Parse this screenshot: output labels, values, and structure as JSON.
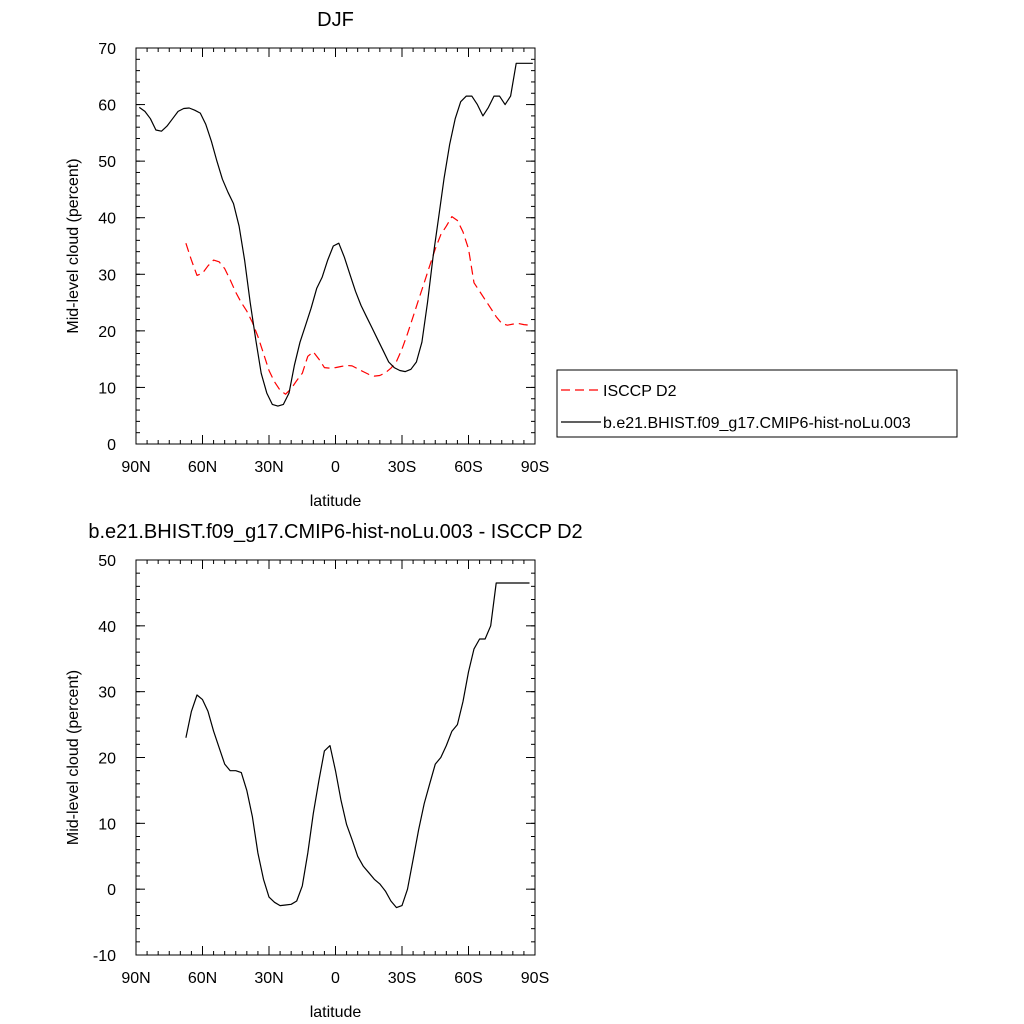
{
  "chart_data": [
    {
      "type": "line",
      "title": "DJF",
      "xlabel": "latitude",
      "ylabel": "Mid-level cloud (percent)",
      "xlim": [
        90,
        -90
      ],
      "ylim": [
        0,
        70
      ],
      "xticks": [
        90,
        60,
        30,
        0,
        -30,
        -60,
        -90
      ],
      "xtick_labels": [
        "90N",
        "60N",
        "30N",
        "0",
        "30S",
        "60S",
        "90S"
      ],
      "yticks": [
        0,
        10,
        20,
        30,
        40,
        50,
        60,
        70
      ],
      "ytick_labels": [
        "0",
        "10",
        "20",
        "30",
        "40",
        "50",
        "60",
        "70"
      ],
      "legend": {
        "placement": "right",
        "entries": [
          "ISCCP D2",
          "b.e21.BHIST.f09_g17.CMIP6-hist-noLu.003"
        ]
      },
      "series": [
        {
          "name": "ISCCP D2",
          "color": "#ff0000",
          "dashed": true,
          "x": [
            67.5,
            65,
            62.5,
            60,
            57.5,
            55,
            52.5,
            50,
            47.5,
            45,
            42.5,
            40,
            37.5,
            35,
            32.5,
            30,
            27.5,
            25,
            22.5,
            20,
            17.5,
            15,
            12.5,
            10,
            7.5,
            5,
            2.5,
            0,
            -2.5,
            -5,
            -7.5,
            -10,
            -12.5,
            -15,
            -17.5,
            -20,
            -22.5,
            -25,
            -27.5,
            -30,
            -32.5,
            -35,
            -37.5,
            -40,
            -42.5,
            -45,
            -47.5,
            -50,
            -52.5,
            -55,
            -57.5,
            -60,
            -62.5,
            -65,
            -67.5,
            -70,
            -72.5,
            -75,
            -77.5,
            -80,
            -82.5,
            -85,
            -87.5
          ],
          "y": [
            35.5,
            32.5,
            29.8,
            30.2,
            31.5,
            32.5,
            32.2,
            31,
            29,
            26.8,
            25,
            23.5,
            21.5,
            19,
            16,
            13,
            11,
            9.5,
            8.8,
            9.8,
            11.2,
            12.5,
            15.5,
            16.3,
            15,
            13.5,
            13.4,
            13.5,
            13.7,
            13.9,
            13.8,
            13.3,
            12.8,
            12.3,
            12,
            12.1,
            12.6,
            13.4,
            14.6,
            16.8,
            19.5,
            22.5,
            25.5,
            28.5,
            31.5,
            34.5,
            37,
            38.5,
            40.2,
            39.5,
            37.5,
            34.5,
            28.5,
            27,
            25.5,
            24,
            22.5,
            21.3,
            21,
            21.2,
            21.3,
            21.1,
            21
          ]
        },
        {
          "name": "b.e21.BHIST.f09_g17.CMIP6-hist-noLu.003",
          "color": "#000000",
          "dashed": false,
          "x": [
            88.5,
            86,
            83.5,
            81,
            78.5,
            76,
            73.5,
            71,
            68.5,
            66,
            63.5,
            61,
            58.5,
            56,
            53.5,
            51,
            48.5,
            46,
            43.5,
            41,
            38.5,
            36,
            33.5,
            31,
            28.5,
            26,
            23.5,
            21,
            18.5,
            16,
            13.5,
            11,
            8.5,
            6,
            3.5,
            1,
            -1.5,
            -4,
            -6.5,
            -9,
            -11.5,
            -14,
            -16.5,
            -19,
            -21.5,
            -24,
            -26.5,
            -29,
            -31.5,
            -34,
            -36.5,
            -39,
            -41.5,
            -44,
            -46.5,
            -49,
            -51.5,
            -54,
            -56.5,
            -59,
            -61.5,
            -64,
            -66.5,
            -69,
            -71.5,
            -74,
            -76.5,
            -79,
            -81.5,
            -84,
            -86.5,
            -89
          ],
          "y": [
            59.5,
            58.8,
            57.5,
            55.5,
            55.3,
            56.2,
            57.5,
            58.8,
            59.3,
            59.4,
            59,
            58.5,
            56.5,
            53.5,
            50,
            46.8,
            44.5,
            42.5,
            38.5,
            32.5,
            25,
            18.5,
            12.5,
            9,
            7,
            6.7,
            7,
            9,
            14,
            18,
            21,
            24,
            27.5,
            29.5,
            32.5,
            35,
            35.5,
            33,
            30,
            27,
            24.5,
            22.5,
            20.5,
            18.5,
            16.5,
            14.5,
            13.5,
            13,
            12.8,
            13.2,
            14.5,
            18,
            25,
            33,
            40,
            47,
            53,
            57.5,
            60.5,
            61.5,
            61.5,
            60,
            58,
            59.5,
            61.5,
            61.5,
            60,
            61.5,
            67.3,
            67.3,
            67.3,
            67.3
          ]
        }
      ]
    },
    {
      "type": "line",
      "title": "b.e21.BHIST.f09_g17.CMIP6-hist-noLu.003 - ISCCP D2",
      "xlabel": "latitude",
      "ylabel": "Mid-level cloud (percent)",
      "xlim": [
        90,
        -90
      ],
      "ylim": [
        -10,
        50
      ],
      "xticks": [
        90,
        60,
        30,
        0,
        -30,
        -60,
        -90
      ],
      "xtick_labels": [
        "90N",
        "60N",
        "30N",
        "0",
        "30S",
        "60S",
        "90S"
      ],
      "yticks": [
        -10,
        0,
        10,
        20,
        30,
        40,
        50
      ],
      "ytick_labels": [
        "-10",
        "0",
        "10",
        "20",
        "30",
        "40",
        "50"
      ],
      "series": [
        {
          "color": "#000000",
          "dashed": false,
          "x": [
            67.5,
            65,
            62.5,
            60,
            57.5,
            55,
            52.5,
            50,
            47.5,
            45,
            42.5,
            40,
            37.5,
            35,
            32.5,
            30,
            27.5,
            25,
            22.5,
            20,
            17.5,
            15,
            12.5,
            10,
            7.5,
            5,
            2.5,
            0,
            -2.5,
            -5,
            -7.5,
            -10,
            -12.5,
            -15,
            -17.5,
            -20,
            -22.5,
            -25,
            -27.5,
            -30,
            -32.5,
            -35,
            -37.5,
            -40,
            -42.5,
            -45,
            -47.5,
            -50,
            -52.5,
            -55,
            -57.5,
            -60,
            -62.5,
            -65,
            -67.5,
            -70,
            -72.5,
            -75,
            -77.5,
            -80,
            -82.5,
            -85,
            -87.5
          ],
          "y": [
            23,
            27,
            29.5,
            28.8,
            27,
            24,
            21.5,
            19,
            18,
            18,
            17.7,
            15,
            11,
            5.5,
            1.5,
            -1.2,
            -2,
            -2.5,
            -2.4,
            -2.3,
            -1.8,
            0.5,
            5.5,
            11.5,
            16.5,
            21,
            21.8,
            18,
            13.5,
            9.8,
            7.5,
            5,
            3.5,
            2.5,
            1.5,
            0.8,
            -0.3,
            -1.8,
            -2.8,
            -2.5,
            0,
            4.5,
            9,
            13,
            16,
            19,
            20,
            21.8,
            24,
            25,
            28.5,
            33,
            36.5,
            38,
            38,
            40,
            46.5,
            46.5,
            46.5,
            46.5,
            46.5,
            46.5,
            46.5
          ]
        }
      ]
    }
  ]
}
